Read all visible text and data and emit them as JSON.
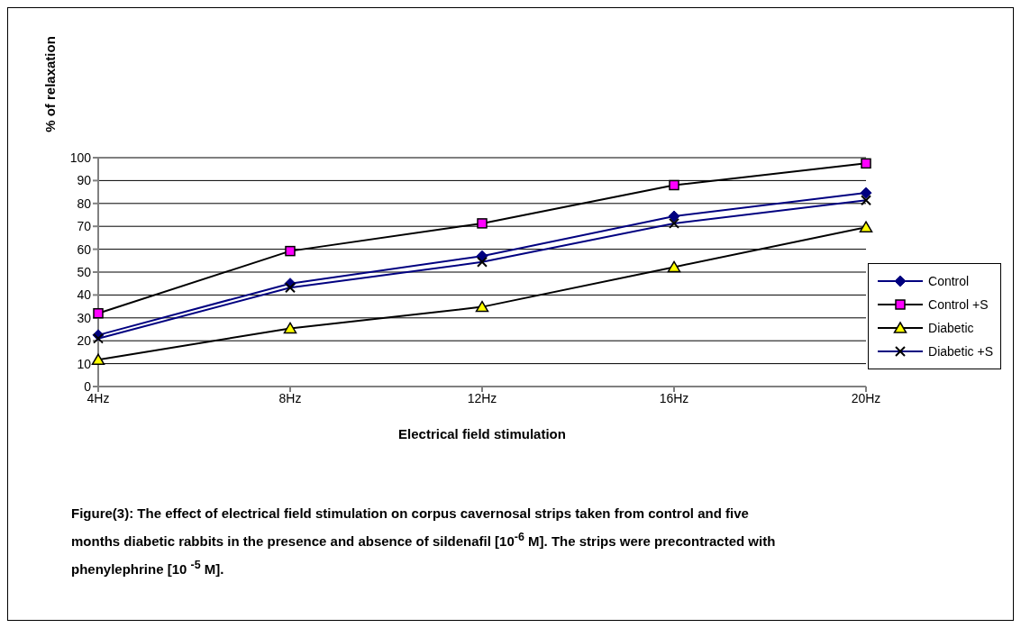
{
  "chart_data": {
    "type": "line",
    "ylabel": "% of relaxation",
    "xlabel": "Electrical field stimulation",
    "categories": [
      "4Hz",
      "8Hz",
      "12Hz",
      "16Hz",
      "20Hz"
    ],
    "series": [
      {
        "name": "Control",
        "color": "#000080",
        "marker": "diamond",
        "colors": [
          "#000080",
          "#000080",
          "#000080",
          "#000080",
          "#000080"
        ],
        "values": [
          22.5,
          45,
          57,
          74.4,
          84.6
        ]
      },
      {
        "name": "Control +S",
        "color": "#000000",
        "marker": "square",
        "colors": [
          "#ff00ff",
          "#ff00ff",
          "#ff00ff",
          "#ff00ff",
          "#ff00ff"
        ],
        "values": [
          32,
          59.2,
          71.3,
          88,
          97.5
        ]
      },
      {
        "name": "Diabetic",
        "color": "#000000",
        "marker": "triangle",
        "colors": [
          "#ffff00",
          "#ffff00",
          "#ffff00",
          "#ffff00",
          "#ffff00"
        ],
        "values": [
          11.7,
          25.4,
          34.8,
          52.2,
          69.6
        ]
      },
      {
        "name": "Diabetic +S",
        "color": "#000080",
        "marker": "cross",
        "colors": [
          "#000000",
          "#000000",
          "#000000",
          "#000000",
          "#000000"
        ],
        "values": [
          21,
          43.2,
          54.4,
          71.3,
          81.4
        ]
      }
    ],
    "ylim": [
      0,
      100
    ],
    "yticks": [
      0,
      10,
      20,
      30,
      40,
      50,
      60,
      70,
      80,
      90,
      100
    ],
    "grid": "y",
    "legend": "right",
    "annotations": [
      "Figure(3): The effect of electrical field stimulation on corpus cavernosal strips taken from control and five months diabetic rabbits in the presence and absence of sildenafil [10$^{-6}$ M]. The strips were precontracted with phenylephrine [10 $^{-5}$ M]."
    ]
  }
}
